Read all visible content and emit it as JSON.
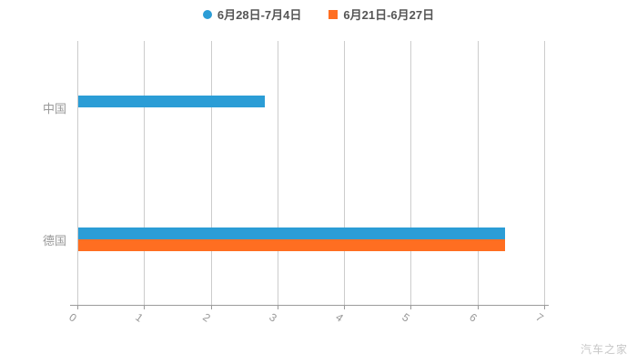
{
  "chart_data": {
    "type": "bar",
    "orientation": "horizontal",
    "title": "",
    "categories": [
      "中国",
      "德国"
    ],
    "series": [
      {
        "name": "6月28日-7月4日",
        "color": "#2B9DD6",
        "marker": "circle",
        "values": [
          2.8,
          6.4
        ]
      },
      {
        "name": "6月21日-6月27日",
        "color": "#FF6E21",
        "marker": "square",
        "values": [
          0,
          6.4
        ]
      }
    ],
    "xlim": [
      0,
      7
    ],
    "x_ticks": [
      "0",
      "1",
      "2",
      "3",
      "4",
      "5",
      "6",
      "7"
    ],
    "grid": true,
    "legend_position": "top",
    "grid_color": "#cccccc",
    "axis_color": "#9b9b9b",
    "label_color": "#999999"
  },
  "watermark": "汽车之家"
}
